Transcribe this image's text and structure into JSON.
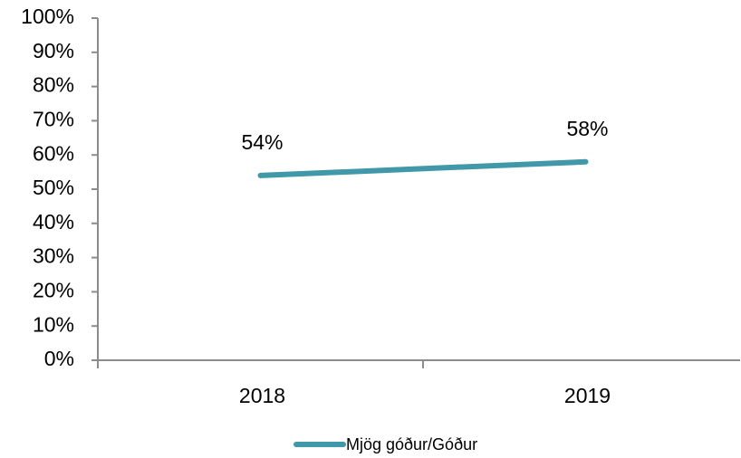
{
  "chart_data": {
    "type": "line",
    "categories": [
      "2018",
      "2019"
    ],
    "series": [
      {
        "name": "Mjög góður/Góður",
        "color": "#4198a8",
        "values": [
          54,
          58
        ],
        "value_labels": [
          "54%",
          "58%"
        ]
      }
    ],
    "ylim": [
      0,
      100
    ],
    "yticks": [
      {
        "value": 0,
        "label": "0%"
      },
      {
        "value": 10,
        "label": "10%"
      },
      {
        "value": 20,
        "label": "20%"
      },
      {
        "value": 30,
        "label": "30%"
      },
      {
        "value": 40,
        "label": "40%"
      },
      {
        "value": 50,
        "label": "50%"
      },
      {
        "value": 60,
        "label": "60%"
      },
      {
        "value": 70,
        "label": "70%"
      },
      {
        "value": 80,
        "label": "80%"
      },
      {
        "value": 90,
        "label": "90%"
      },
      {
        "value": 100,
        "label": "100%"
      }
    ],
    "grid": false,
    "legend": "bottom"
  }
}
